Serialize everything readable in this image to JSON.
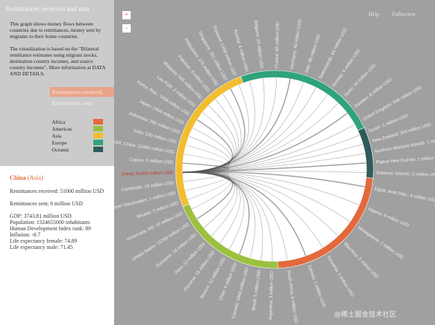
{
  "sidebar": {
    "title": "Remittances received and sent",
    "description": [
      "This graph shows money flows between countries due to remittances, money sent by migrants to their home countries.",
      "The visualization is based on the \"Bilateral remittance estimates using migrant stocks, destination country incomes, and source country incomes\", More information at DATA AND DETAILS."
    ],
    "tabs": [
      "Remittances received",
      "Remittances sent"
    ],
    "legend": [
      {
        "label": "Africa",
        "color": "#e3693c",
        "countries": [
          "Egypt, Arab Rep.: 4 million USD",
          "Nigeria: 8 million USD",
          "Madagascar: 2 million USD",
          "Mauritius: 2 million USD",
          "Tanzania: 1 million USD",
          "Zambia: 1 million USD",
          "South Africa: 6 million USD"
        ]
      },
      {
        "label": "Americas",
        "color": "#9bc13f",
        "countries": [
          "Argentina: 3 million USD",
          "Brazil: 5 million USD",
          "Canada: 1868 million USD",
          "Chile: 4 million USD",
          "Mexico: 12 million USD",
          "Panama: 15 million USD",
          "Peru: 12 million USD",
          "Suriname: 16 million USD",
          "United States: 15760 million USD",
          "Venezuela, RB: 15 million USD"
        ]
      },
      {
        "label": "Asia",
        "color": "#f2bd2e",
        "countries": [
          "Bhutan: 2 million USD",
          "Brunei Darussalam: 1 million USD",
          "Cambodia: 18 million USD",
          "China: 51000 million USD",
          "Cyprus: 5 million USD",
          "Hong Kong SAR, China: 12480 million USD",
          "India: 100 million USD",
          "Indonesia: 265 million USD",
          "Japan: 2468 million USD",
          "Korea, Rep.: 1468 million USD",
          "Lao PDR: 2 million USD",
          "Malaysia: 545 million USD",
          "Pakistan: 8 million USD",
          "Philippines: 176 million USD",
          "Singapore: 251 million USD",
          "Thailand: 1468 million USD"
        ]
      },
      {
        "label": "Europe",
        "color": "#2fa37b",
        "countries": [
          "Austria: 4 million USD",
          "Belgium: 25 million USD",
          "France: 65 million USD",
          "Germany: 40 million USD",
          "Italy: 46 million USD",
          "Netherlands: 64 million USD",
          "Norway: 6 million USD",
          "Spain: 30 million USD",
          "Sweden: 8 million USD",
          "United Kingdom: 646 million USD"
        ]
      },
      {
        "label": "Oceania",
        "color": "#2f5b5c",
        "countries": [
          "Guam: 1 million USD",
          "New Zealand: 304 million USD",
          "Northern Mariana Islands: 1 million USD",
          "Papua New Guinea: 1 million USD",
          "Solomon Islands: 2 million USD"
        ]
      }
    ]
  },
  "detail": {
    "name": "China",
    "region": "(Asia)",
    "lines": [
      "Remittances received: 51000 million USD",
      "Remittances sent: 0 million USD",
      "GDP: 3743.81 million USD",
      "Population: 1324655000 inhabitants",
      "Human Development Index rank: 89",
      "Inflation: -0.7",
      "Life expectancy female: 74.89",
      "Life expectancy male: 71.45"
    ]
  },
  "toolbar": {
    "zoom_in": "+",
    "zoom_out": "-",
    "help": "Help",
    "fullscreen": "Fullscreen"
  },
  "watermark": "@稀土掘金技术社区"
}
